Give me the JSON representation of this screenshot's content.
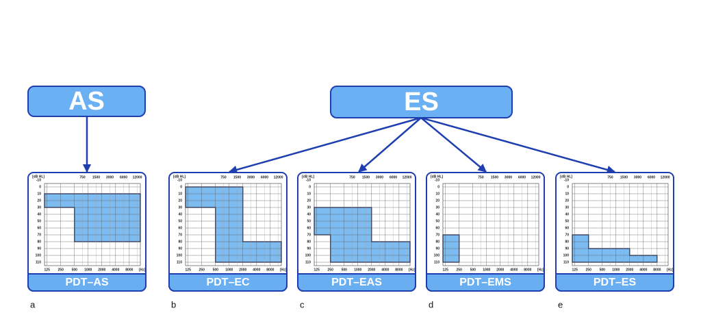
{
  "nodes": [
    {
      "label": "AS"
    },
    {
      "label": "ES"
    }
  ],
  "audiogram": {
    "y_unit": "[dB HL]",
    "x_unit": "[Hz]",
    "ylim": [
      -5,
      115
    ],
    "yticks": [
      -10,
      0,
      10,
      20,
      30,
      40,
      50,
      60,
      70,
      80,
      90,
      100,
      110
    ],
    "xlim": [
      110,
      14000
    ],
    "xticks_bottom": [
      125,
      250,
      500,
      1000,
      2000,
      4000,
      8000
    ],
    "xticks_top": [
      750,
      1500,
      3000,
      6000,
      12000
    ]
  },
  "panels": [
    {
      "label": "PDT–AS",
      "letter": "a",
      "region": {
        "hz": [
          110,
          14000,
          14000,
          500,
          500,
          110
        ],
        "db": [
          10,
          10,
          80,
          80,
          30,
          30
        ]
      }
    },
    {
      "label": "PDT–EC",
      "letter": "b",
      "region": {
        "hz": [
          110,
          2000,
          2000,
          14000,
          14000,
          500,
          500,
          110
        ],
        "db": [
          0,
          0,
          80,
          80,
          110,
          110,
          30,
          30
        ]
      }
    },
    {
      "label": "PDT–EAS",
      "letter": "c",
      "region": {
        "hz": [
          110,
          2000,
          2000,
          14000,
          14000,
          250,
          250,
          110
        ],
        "db": [
          30,
          30,
          80,
          80,
          110,
          110,
          70,
          70
        ]
      }
    },
    {
      "label": "PDT–EMS",
      "letter": "d",
      "region": {
        "hz": [
          110,
          250,
          250,
          110
        ],
        "db": [
          70,
          70,
          110,
          110
        ]
      }
    },
    {
      "label": "PDT–ES",
      "letter": "e",
      "region": {
        "hz": [
          110,
          250,
          250,
          2000,
          2000,
          8000,
          8000,
          110
        ],
        "db": [
          70,
          70,
          90,
          90,
          100,
          100,
          110,
          110
        ]
      }
    }
  ]
}
